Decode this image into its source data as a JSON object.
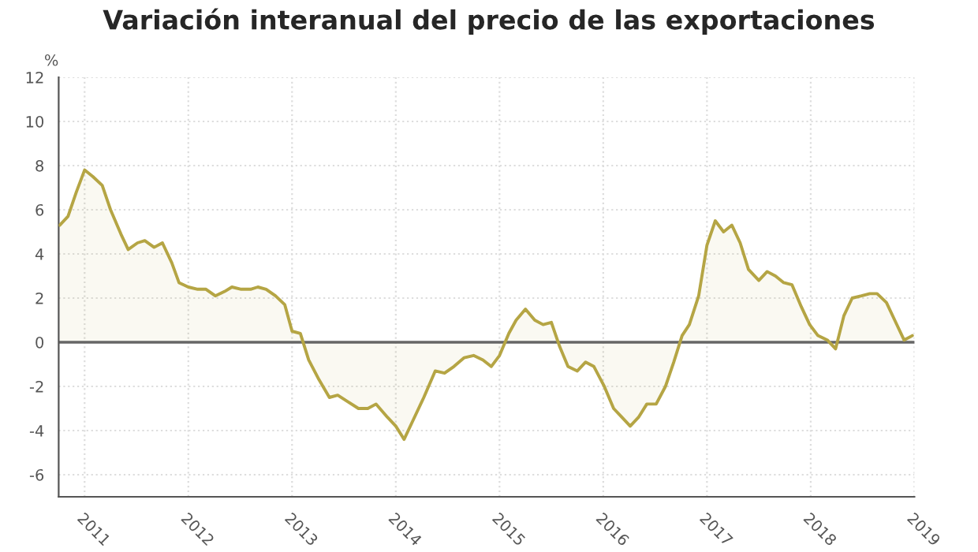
{
  "chart_data": {
    "type": "area",
    "title": "Variación interanual del precio de las exportaciones",
    "ylabel": "%",
    "x": [
      2010.76,
      2010.84,
      2010.92,
      2011.0,
      2011.08,
      2011.17,
      2011.25,
      2011.35,
      2011.42,
      2011.51,
      2011.58,
      2011.67,
      2011.75,
      2011.84,
      2011.91,
      2012.0,
      2012.09,
      2012.17,
      2012.26,
      2012.35,
      2012.42,
      2012.51,
      2012.6,
      2012.67,
      2012.75,
      2012.84,
      2012.93,
      2013.0,
      2013.08,
      2013.16,
      2013.26,
      2013.36,
      2013.44,
      2013.54,
      2013.64,
      2013.73,
      2013.81,
      2013.92,
      2014.0,
      2014.08,
      2014.17,
      2014.27,
      2014.38,
      2014.47,
      2014.56,
      2014.66,
      2014.75,
      2014.84,
      2014.92,
      2015.0,
      2015.09,
      2015.16,
      2015.25,
      2015.34,
      2015.42,
      2015.5,
      2015.58,
      2015.66,
      2015.75,
      2015.83,
      2015.91,
      2016.01,
      2016.1,
      2016.18,
      2016.26,
      2016.34,
      2016.42,
      2016.51,
      2016.6,
      2016.68,
      2016.76,
      2016.83,
      2016.92,
      2017.0,
      2017.08,
      2017.16,
      2017.24,
      2017.32,
      2017.4,
      2017.5,
      2017.58,
      2017.66,
      2017.74,
      2017.82,
      2017.91,
      2017.99,
      2018.07,
      2018.16,
      2018.24,
      2018.32,
      2018.4,
      2018.49,
      2018.57,
      2018.64,
      2018.73,
      2018.81,
      2018.9,
      2018.98
    ],
    "series": [
      {
        "color": "#b5a544",
        "values": [
          5.3,
          5.7,
          6.8,
          7.8,
          7.5,
          7.1,
          6.0,
          4.9,
          4.2,
          4.5,
          4.6,
          4.3,
          4.5,
          3.6,
          2.7,
          2.5,
          2.4,
          2.4,
          2.1,
          2.3,
          2.5,
          2.4,
          2.4,
          2.5,
          2.4,
          2.1,
          1.7,
          0.5,
          0.4,
          -0.8,
          -1.7,
          -2.5,
          -2.4,
          -2.7,
          -3.0,
          -3.0,
          -2.8,
          -3.4,
          -3.8,
          -4.4,
          -3.5,
          -2.5,
          -1.3,
          -1.4,
          -1.1,
          -0.7,
          -0.6,
          -0.8,
          -1.1,
          -0.6,
          0.4,
          1.0,
          1.5,
          1.0,
          0.8,
          0.9,
          -0.2,
          -1.1,
          -1.3,
          -0.9,
          -1.1,
          -2.0,
          -3.0,
          -3.4,
          -3.8,
          -3.4,
          -2.8,
          -2.8,
          -2.0,
          -0.9,
          0.3,
          0.8,
          2.1,
          4.4,
          5.5,
          5.0,
          5.3,
          4.5,
          3.3,
          2.8,
          3.2,
          3.0,
          2.7,
          2.6,
          1.6,
          0.8,
          0.3,
          0.1,
          -0.3,
          1.2,
          2.0,
          2.1,
          2.2,
          2.2,
          1.8,
          1.0,
          0.1,
          0.3
        ]
      }
    ],
    "xlim": [
      2010.75,
      2019
    ],
    "xticks": [
      2011,
      2012,
      2013,
      2014,
      2015,
      2016,
      2017,
      2018,
      2019
    ],
    "ylim": [
      -7,
      12
    ],
    "yticks": [
      -6,
      -4,
      -2,
      0,
      2,
      4,
      6,
      8,
      10,
      12
    ],
    "ref_lines": [
      {
        "axis": "y",
        "value": 0,
        "color": "#666666"
      }
    ],
    "grid": true
  }
}
